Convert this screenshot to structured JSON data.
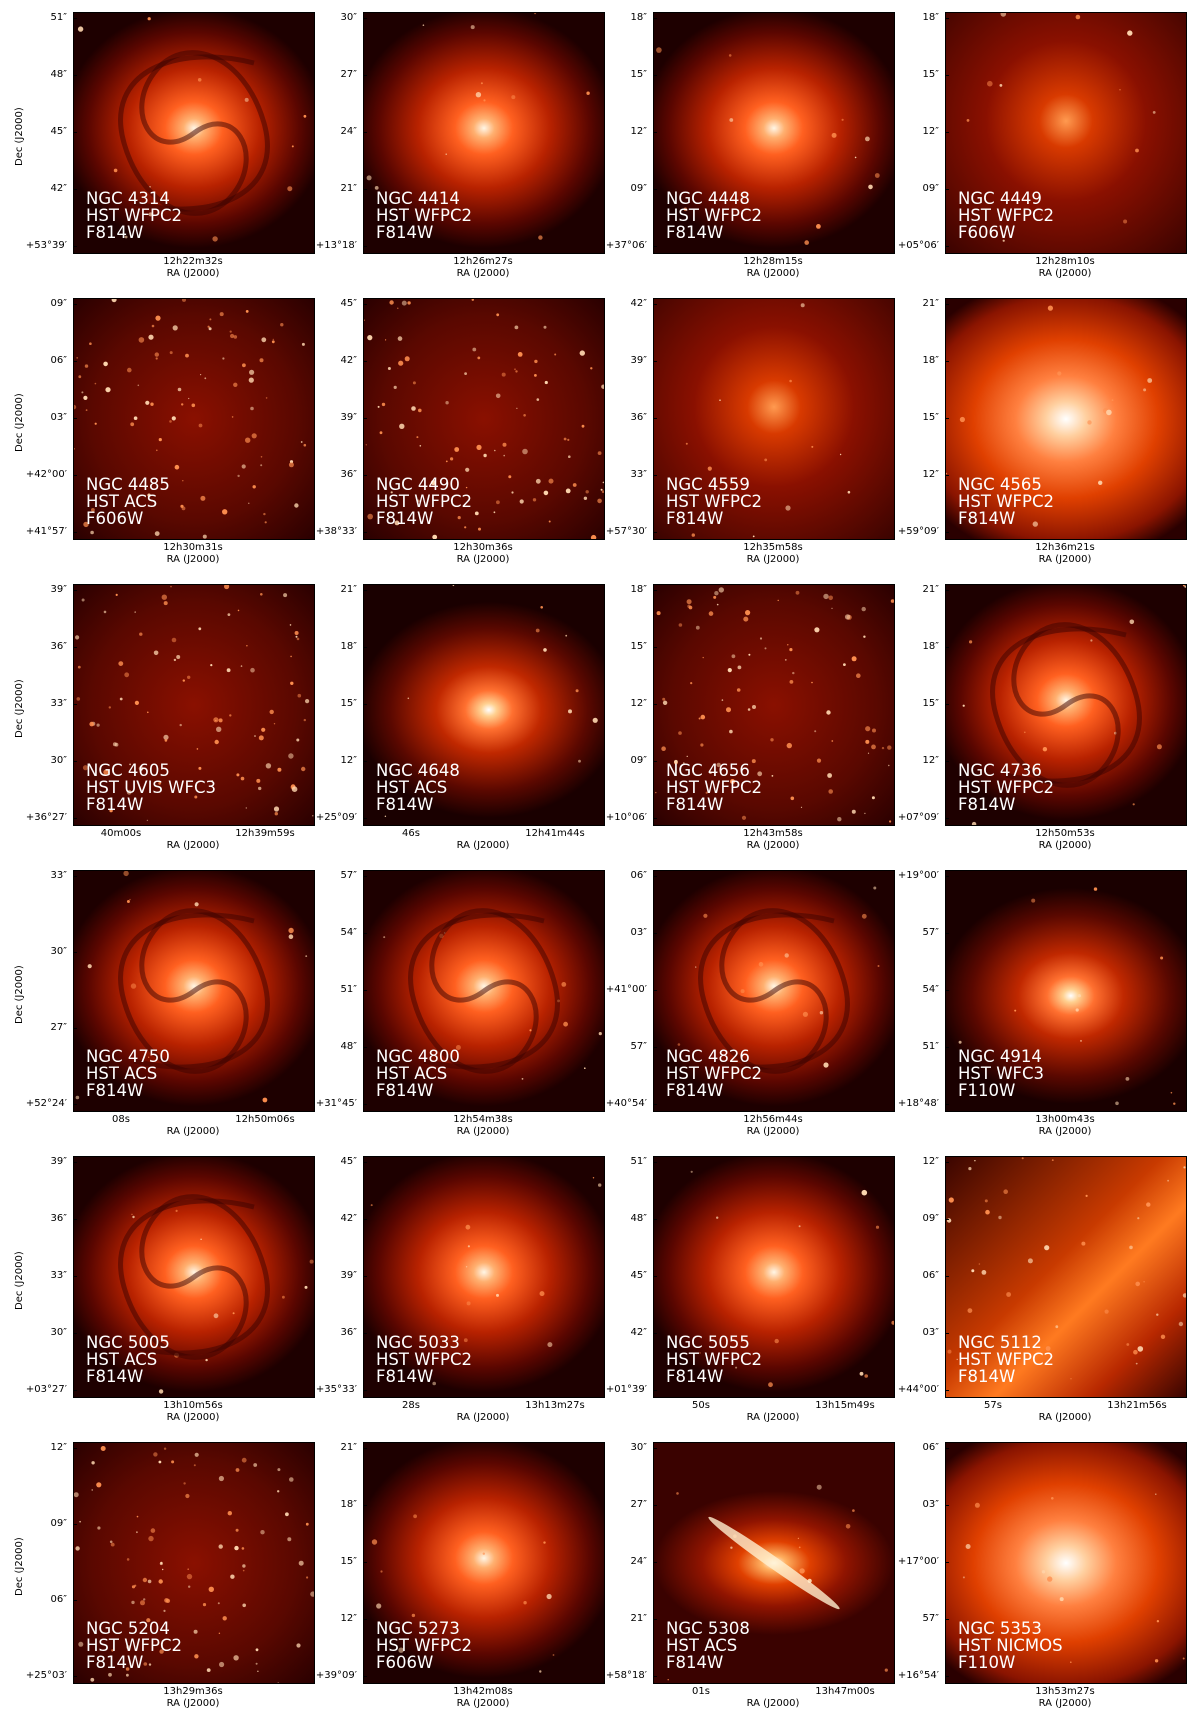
{
  "axis_labels": {
    "x": "RA (J2000)",
    "y": "Dec (J2000)"
  },
  "colors": {
    "background": "#1a0000",
    "mid": "#b01800",
    "bright": "#ff7a30",
    "core": "#fff4e0"
  },
  "panels": [
    {
      "name": "NGC 4314",
      "instrument": "HST WFPC2",
      "filter": "F814W",
      "yticks": [
        "51″",
        "48″",
        "45″",
        "42″",
        "+53°39′"
      ],
      "xticks": [
        "12h22m32s"
      ],
      "style": "spiral"
    },
    {
      "name": "NGC 4414",
      "instrument": "HST WFPC2",
      "filter": "F814W",
      "yticks": [
        "30″",
        "27″",
        "24″",
        "21″",
        "+13°18′"
      ],
      "xticks": [
        "12h26m27s"
      ],
      "style": "disk-tilt"
    },
    {
      "name": "NGC 4448",
      "instrument": "HST WFPC2",
      "filter": "F814W",
      "yticks": [
        "18″",
        "15″",
        "12″",
        "09″",
        "+37°06′"
      ],
      "xticks": [
        "12h28m15s"
      ],
      "style": "bulge"
    },
    {
      "name": "NGC 4449",
      "instrument": "HST WFPC2",
      "filter": "F606W",
      "yticks": [
        "18″",
        "15″",
        "12″",
        "09″",
        "+05°06′"
      ],
      "xticks": [
        "12h28m10s"
      ],
      "style": "irregular"
    },
    {
      "name": "NGC 4485",
      "instrument": "HST ACS",
      "filter": "F606W",
      "yticks": [
        "09″",
        "06″",
        "03″",
        "+42°00′",
        "+41°57′"
      ],
      "xticks": [
        "12h30m31s"
      ],
      "style": "field"
    },
    {
      "name": "NGC 4490",
      "instrument": "HST WFPC2",
      "filter": "F814W",
      "yticks": [
        "45″",
        "42″",
        "39″",
        "36″",
        "+38°33′"
      ],
      "xticks": [
        "12h30m36s"
      ],
      "style": "field"
    },
    {
      "name": "NGC 4559",
      "instrument": "HST WFPC2",
      "filter": "F814W",
      "yticks": [
        "42″",
        "39″",
        "36″",
        "33″",
        "+57°30′"
      ],
      "xticks": [
        "12h35m58s"
      ],
      "style": "irregular"
    },
    {
      "name": "NGC 4565",
      "instrument": "HST WFPC2",
      "filter": "F814W",
      "yticks": [
        "21″",
        "18″",
        "15″",
        "12″",
        "+59°09′"
      ],
      "xticks": [
        "12h36m21s"
      ],
      "style": "bright-disk"
    },
    {
      "name": "NGC 4605",
      "instrument": "HST UVIS WFC3",
      "filter": "F814W",
      "yticks": [
        "39″",
        "36″",
        "33″",
        "30″",
        "+36°27′"
      ],
      "xticks": [
        "40m00s",
        "12h39m59s"
      ],
      "style": "field"
    },
    {
      "name": "NGC 4648",
      "instrument": "HST ACS",
      "filter": "F814W",
      "yticks": [
        "21″",
        "18″",
        "15″",
        "12″",
        "+25°09′"
      ],
      "xticks": [
        "46s",
        "12h41m44s"
      ],
      "style": "elliptical"
    },
    {
      "name": "NGC 4656",
      "instrument": "HST WFPC2",
      "filter": "F814W",
      "yticks": [
        "18″",
        "15″",
        "12″",
        "09″",
        "+10°06′"
      ],
      "xticks": [
        "12h43m58s"
      ],
      "style": "field"
    },
    {
      "name": "NGC 4736",
      "instrument": "HST WFPC2",
      "filter": "F814W",
      "yticks": [
        "21″",
        "18″",
        "15″",
        "12″",
        "+07°09′"
      ],
      "xticks": [
        "12h50m53s"
      ],
      "style": "spiral"
    },
    {
      "name": "NGC 4750",
      "instrument": "HST ACS",
      "filter": "F814W",
      "yticks": [
        "33″",
        "30″",
        "27″",
        "+52°24′"
      ],
      "xticks": [
        "08s",
        "12h50m06s"
      ],
      "style": "spiral"
    },
    {
      "name": "NGC 4800",
      "instrument": "HST ACS",
      "filter": "F814W",
      "yticks": [
        "57″",
        "54″",
        "51″",
        "48″",
        "+31°45′"
      ],
      "xticks": [
        "12h54m38s"
      ],
      "style": "spiral"
    },
    {
      "name": "NGC 4826",
      "instrument": "HST WFPC2",
      "filter": "F814W",
      "yticks": [
        "06″",
        "03″",
        "+41°00′",
        "57″",
        "+40°54′"
      ],
      "xticks": [
        "12h56m44s"
      ],
      "style": "spiral"
    },
    {
      "name": "NGC 4914",
      "instrument": "HST WFC3",
      "filter": "F110W",
      "yticks": [
        "+19°00′",
        "57″",
        "54″",
        "51″",
        "+18°48′"
      ],
      "xticks": [
        "13h00m43s"
      ],
      "style": "elliptical"
    },
    {
      "name": "NGC 5005",
      "instrument": "HST ACS",
      "filter": "F814W",
      "yticks": [
        "39″",
        "36″",
        "33″",
        "30″",
        "+03°27′"
      ],
      "xticks": [
        "13h10m56s"
      ],
      "style": "spiral"
    },
    {
      "name": "NGC 5033",
      "instrument": "HST WFPC2",
      "filter": "F814W",
      "yticks": [
        "45″",
        "42″",
        "39″",
        "36″",
        "+35°33′"
      ],
      "xticks": [
        "28s",
        "13h13m27s"
      ],
      "style": "disk-tilt"
    },
    {
      "name": "NGC 5055",
      "instrument": "HST WFPC2",
      "filter": "F814W",
      "yticks": [
        "51″",
        "48″",
        "45″",
        "42″",
        "+01°39′"
      ],
      "xticks": [
        "50s",
        "13h15m49s"
      ],
      "style": "bulge"
    },
    {
      "name": "NGC 5112",
      "instrument": "HST WFPC2",
      "filter": "F814W",
      "yticks": [
        "12″",
        "09″",
        "06″",
        "03″",
        "+44°00′"
      ],
      "xticks": [
        "57s",
        "13h21m56s"
      ],
      "style": "bright-field"
    },
    {
      "name": "NGC 5204",
      "instrument": "HST WFPC2",
      "filter": "F814W",
      "yticks": [
        "12″",
        "09″",
        "06″",
        "+25°03′"
      ],
      "xticks": [
        "13h29m36s"
      ],
      "style": "field"
    },
    {
      "name": "NGC 5273",
      "instrument": "HST WFPC2",
      "filter": "F606W",
      "yticks": [
        "21″",
        "18″",
        "15″",
        "12″",
        "+39°09′"
      ],
      "xticks": [
        "13h42m08s"
      ],
      "style": "bulge"
    },
    {
      "name": "NGC 5308",
      "instrument": "HST ACS",
      "filter": "F814W",
      "yticks": [
        "30″",
        "27″",
        "24″",
        "21″",
        "+58°18′"
      ],
      "xticks": [
        "01s",
        "13h47m00s"
      ],
      "style": "edge-on"
    },
    {
      "name": "NGC 5353",
      "instrument": "HST NICMOS",
      "filter": "F110W",
      "yticks": [
        "06″",
        "03″",
        "+17°00′",
        "57″",
        "+16°54′"
      ],
      "xticks": [
        "13h53m27s"
      ],
      "style": "bright-disk"
    }
  ]
}
